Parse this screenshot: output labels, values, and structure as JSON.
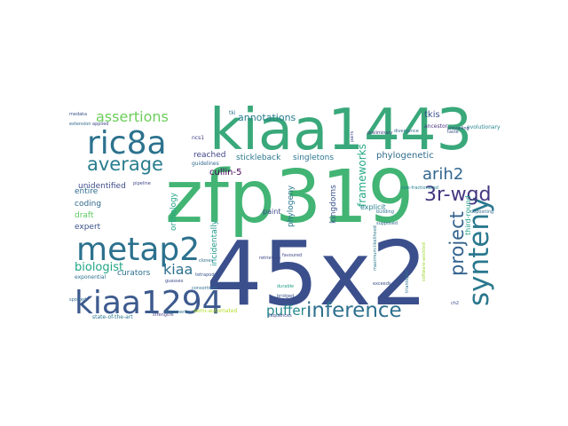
{
  "words": [
    {
      "text": "zfp319",
      "color": "#42b474"
    },
    {
      "text": "45x2",
      "color": "#3b4f8c"
    },
    {
      "text": "kiaa1443",
      "color": "#39a87a"
    },
    {
      "text": "kiaa1294",
      "color": "#3d5a8e"
    },
    {
      "text": "metap2",
      "color": "#2c718e"
    },
    {
      "text": "ric8a",
      "color": "#2c728e"
    },
    {
      "text": "synteny",
      "color": "#2a788e"
    },
    {
      "text": "inference",
      "color": "#2d708e"
    },
    {
      "text": "project",
      "color": "#33628d"
    },
    {
      "text": "average",
      "color": "#287d8e"
    },
    {
      "text": "assertions",
      "color": "#6ccd5a"
    },
    {
      "text": "3r-wgd",
      "color": "#453781"
    },
    {
      "text": "arih2",
      "color": "#31668e"
    },
    {
      "text": "puffer",
      "color": "#24878e"
    },
    {
      "text": "kiaa",
      "color": "#2e6f8e"
    },
    {
      "text": "biologist",
      "color": "#21a685"
    },
    {
      "text": "frameworks",
      "color": "#22a884"
    },
    {
      "text": "unidentified",
      "color": "#3e4c8a"
    },
    {
      "text": "annotations",
      "color": "#287c8e"
    },
    {
      "text": "singletons",
      "color": "#2b758e"
    },
    {
      "text": "phylogenetic",
      "color": "#2f6c8e"
    },
    {
      "text": "reached",
      "color": "#414487"
    },
    {
      "text": "stickleback",
      "color": "#2a788e"
    },
    {
      "text": "cullin-5",
      "color": "#440154"
    },
    {
      "text": "entire",
      "color": "#2e6e8e"
    },
    {
      "text": "coding",
      "color": "#31688e"
    },
    {
      "text": "draft",
      "color": "#5ec962"
    },
    {
      "text": "expert",
      "color": "#3b528b"
    },
    {
      "text": "curators",
      "color": "#2d708e"
    },
    {
      "text": "orthology",
      "color": "#20a386"
    },
    {
      "text": "incidentally",
      "color": "#1f988b"
    },
    {
      "text": "kingdoms",
      "color": "#3a548c"
    },
    {
      "text": "phylogeny",
      "color": "#2a768e"
    },
    {
      "text": "explicit",
      "color": "#277f8e"
    },
    {
      "text": "paint",
      "color": "#3e4a89"
    },
    {
      "text": "third-round",
      "color": "#1f9e89"
    },
    {
      "text": "tkis",
      "color": "#3b528b"
    },
    {
      "text": "ancestor",
      "color": "#46327e"
    },
    {
      "text": "evolutionary",
      "color": "#25858e"
    },
    {
      "text": "ncs1",
      "color": "#433e85"
    },
    {
      "text": "guidelines",
      "color": "#31688e"
    },
    {
      "text": "retrieving",
      "color": "#3e4989"
    },
    {
      "text": "favoured",
      "color": "#3f4788"
    },
    {
      "text": "durable",
      "color": "#1fa088"
    },
    {
      "text": "bridged",
      "color": "#3a548c"
    },
    {
      "text": "sequences",
      "color": "#3e4c8a"
    },
    {
      "text": "exceeds",
      "color": "#3b528b"
    },
    {
      "text": "supposed",
      "color": "#31688e"
    },
    {
      "text": "depositing",
      "color": "#2f6c8e"
    },
    {
      "text": "building",
      "color": "#2b758e"
    },
    {
      "text": "state-of-the-art",
      "color": "#2a788e"
    },
    {
      "text": "semi-automated",
      "color": "#b5de2b"
    },
    {
      "text": "exponential",
      "color": "#2c718e"
    },
    {
      "text": "pipeline",
      "color": "#3f4889"
    },
    {
      "text": "tetrapods",
      "color": "#39568c"
    },
    {
      "text": "clones",
      "color": "#2e6e8e"
    },
    {
      "text": "strengths",
      "color": "#433e85"
    },
    {
      "text": "alignments",
      "color": "#2c718e"
    },
    {
      "text": "guesses",
      "color": "#3e4a89"
    },
    {
      "text": "maximum-likelihood",
      "color": "#2a788e"
    },
    {
      "text": "size-fractionated",
      "color": "#26818e"
    },
    {
      "text": "software-assisted",
      "color": "#a0da39"
    },
    {
      "text": "triantoptic",
      "color": "#2c728e"
    },
    {
      "text": "medaka",
      "color": "#3b528b"
    },
    {
      "text": "extension",
      "color": "#31688e"
    },
    {
      "text": "applied",
      "color": "#3e4a89"
    },
    {
      "text": "spotted",
      "color": "#2f6c8e"
    },
    {
      "text": "consortium",
      "color": "#2d708e"
    },
    {
      "text": "tki",
      "color": "#2c718e"
    },
    {
      "text": "pairs",
      "color": "#3e4989"
    },
    {
      "text": "divergence",
      "color": "#31688e"
    },
    {
      "text": "preliminary",
      "color": "#443983"
    },
    {
      "text": "taste",
      "color": "#3b528b"
    },
    {
      "text": "prevailing",
      "color": "#3e4a89"
    },
    {
      "text": "ch2",
      "color": "#3e4c8a"
    }
  ]
}
